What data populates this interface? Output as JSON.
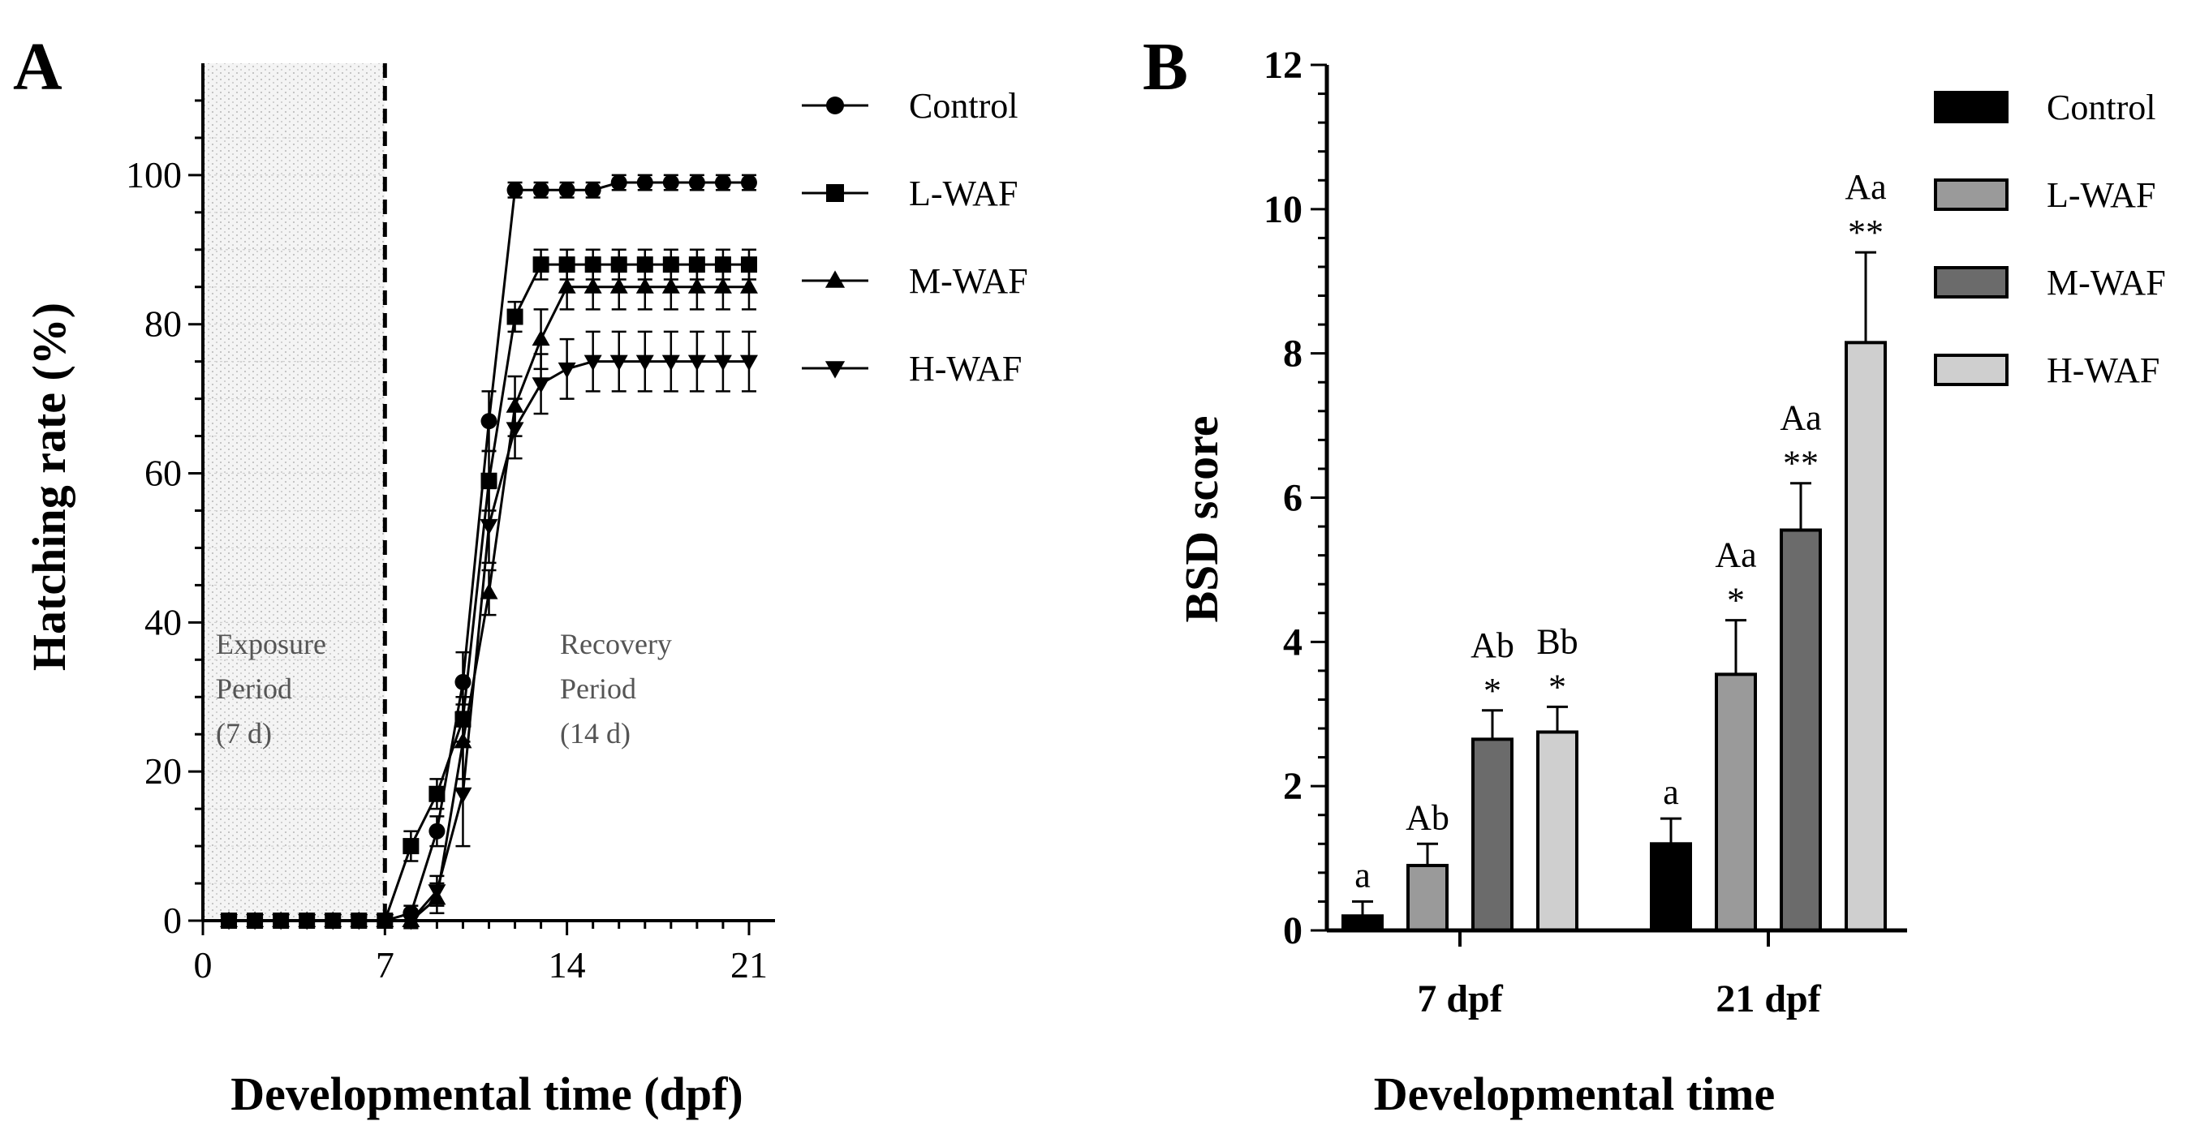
{
  "chart_data": [
    {
      "panel": "A",
      "type": "line",
      "title": "",
      "xlabel": "Developmental time (dpf)",
      "ylabel": "Hatching rate (%)",
      "xlim": [
        0,
        22
      ],
      "ylim": [
        0,
        115
      ],
      "xticks": [
        0,
        7,
        14,
        21
      ],
      "xtick_labels": [
        "0",
        "7",
        "14",
        "21"
      ],
      "yticks": [
        0,
        20,
        40,
        60,
        80,
        100
      ],
      "ytick_labels": [
        "0",
        "20",
        "40",
        "60",
        "80",
        "100"
      ],
      "x": [
        1,
        2,
        3,
        4,
        5,
        6,
        7,
        8,
        9,
        10,
        11,
        12,
        13,
        14,
        15,
        16,
        17,
        18,
        19,
        20,
        21
      ],
      "series": [
        {
          "name": "Control",
          "marker": "circle",
          "values": [
            0,
            0,
            0,
            0,
            0,
            0,
            0,
            1,
            12,
            32,
            67,
            98,
            98,
            98,
            98,
            99,
            99,
            99,
            99,
            99,
            99
          ],
          "errors": [
            0,
            0,
            0,
            0,
            0,
            0,
            0,
            1,
            2,
            4,
            4,
            1,
            1,
            1,
            1,
            1,
            1,
            1,
            1,
            1,
            1
          ]
        },
        {
          "name": "L-WAF",
          "marker": "square",
          "values": [
            0,
            0,
            0,
            0,
            0,
            0,
            0,
            10,
            17,
            27,
            59,
            81,
            88,
            88,
            88,
            88,
            88,
            88,
            88,
            88,
            88
          ],
          "errors": [
            0,
            0,
            0,
            0,
            0,
            0,
            0,
            2,
            2,
            3,
            4,
            2,
            2,
            2,
            2,
            2,
            2,
            2,
            2,
            2,
            2
          ]
        },
        {
          "name": "M-WAF",
          "marker": "triangle-up",
          "values": [
            0,
            0,
            0,
            0,
            0,
            0,
            0,
            0,
            3,
            24,
            44,
            69,
            78,
            85,
            85,
            85,
            85,
            85,
            85,
            85,
            85
          ],
          "errors": [
            0,
            0,
            0,
            0,
            0,
            0,
            0,
            1,
            2,
            5,
            3,
            4,
            4,
            3,
            3,
            3,
            3,
            3,
            3,
            3,
            3
          ]
        },
        {
          "name": "H-WAF",
          "marker": "triangle-down",
          "values": [
            0,
            0,
            0,
            0,
            0,
            0,
            0,
            0,
            4,
            17,
            53,
            66,
            72,
            74,
            75,
            75,
            75,
            75,
            75,
            75,
            75
          ],
          "errors": [
            0,
            0,
            0,
            0,
            0,
            0,
            0,
            1,
            2,
            7,
            5,
            4,
            4,
            4,
            4,
            4,
            4,
            4,
            4,
            4,
            4
          ]
        }
      ],
      "shaded_range": [
        0,
        7
      ],
      "vline": 7,
      "annotations": {
        "exposure": [
          "Exposure",
          "Period",
          "(7 d)"
        ],
        "recovery": [
          "Recovery",
          "Period",
          "(14 d)"
        ]
      },
      "legend": "right"
    },
    {
      "panel": "B",
      "type": "bar",
      "title": "",
      "xlabel": "Developmental time",
      "ylabel": "BSD score",
      "ylim": [
        0,
        12
      ],
      "yticks": [
        0,
        2,
        4,
        6,
        8,
        10,
        12
      ],
      "ytick_labels": [
        "0",
        "2",
        "4",
        "6",
        "8",
        "10",
        "12"
      ],
      "categories": [
        "7 dpf",
        "21 dpf"
      ],
      "series": [
        {
          "name": "Control",
          "color": "#000000",
          "values": [
            0.2,
            1.2
          ],
          "errors": [
            0.2,
            0.35
          ],
          "letters": [
            "a",
            "a"
          ],
          "stars": [
            "",
            ""
          ]
        },
        {
          "name": "L-WAF",
          "color": "#9a9a9a",
          "values": [
            0.9,
            3.55
          ],
          "errors": [
            0.3,
            0.75
          ],
          "letters": [
            "Ab",
            ""
          ],
          "stars": [
            "",
            "*"
          ]
        },
        {
          "name": "M-WAF",
          "color": "#6b6b6b",
          "values": [
            2.65,
            5.55
          ],
          "errors": [
            0.4,
            0.65
          ],
          "letters": [
            "Ab",
            "Aa"
          ],
          "stars": [
            "*",
            "**"
          ]
        },
        {
          "name": "H-WAF",
          "color": "#cfcfcf",
          "values": [
            2.75,
            8.15
          ],
          "errors": [
            0.35,
            1.25
          ],
          "letters": [
            "Bb",
            "Aa"
          ],
          "stars": [
            "*",
            "**"
          ]
        }
      ],
      "extra_annotations": [
        {
          "category": 1,
          "series": 1,
          "text": "Aa"
        }
      ],
      "legend": "right"
    }
  ],
  "panels": {
    "a_letter": "A",
    "b_letter": "B"
  }
}
